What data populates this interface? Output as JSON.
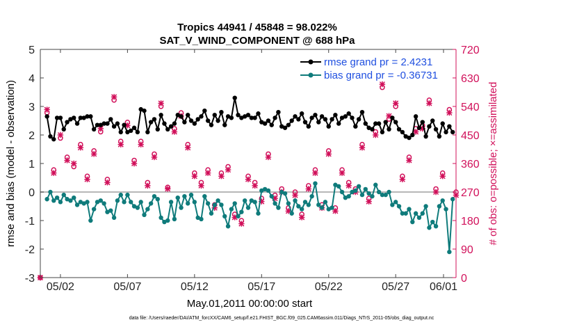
{
  "chart_data": {
    "type": "line",
    "title": "Tropics 44941 / 45848 = 98.022%",
    "subtitle": "SAT_V_WIND_COMPONENT @ 688 hPa",
    "xlabel": "May.01,2011 00:00:00 start",
    "ylabel_left": "rmse and bias (model - observation)",
    "ylabel_right": "# of obs: o=possible; ×=assimilated",
    "footnote": "data file: /Users/raeder/DAI/ATM_forcXX/CAM6_setup/f.e21.FHIST_BGC.f09_025.CAM6assim.011/Diags_NTrS_2011-05/obs_diag_output.nc",
    "xlim": [
      0.5,
      31.5
    ],
    "ylim_left": [
      -3,
      5
    ],
    "ylim_right": [
      0,
      720
    ],
    "x_ticks": [
      {
        "x": 2,
        "label": "05/02"
      },
      {
        "x": 7,
        "label": "05/07"
      },
      {
        "x": 12,
        "label": "05/12"
      },
      {
        "x": 17,
        "label": "05/17"
      },
      {
        "x": 22,
        "label": "05/22"
      },
      {
        "x": 27,
        "label": "05/27"
      },
      {
        "x": 32,
        "label": "06/01"
      }
    ],
    "y_ticks_left": [
      -3,
      -2,
      -1,
      0,
      1,
      2,
      3,
      4,
      5
    ],
    "y_ticks_right": [
      0,
      90,
      180,
      270,
      360,
      450,
      540,
      630,
      720
    ],
    "zero_line": 0,
    "colors": {
      "rmse": "#000000",
      "bias": "#0f7b7b",
      "obs": "#d1105a",
      "zero": "#b8b8b8",
      "legend_text": "#1f4fe0"
    },
    "series": [
      {
        "name": "rmse grand pr = 2.4231",
        "axis": "left",
        "x": [
          1.0,
          1.25,
          1.5,
          1.75,
          2.0,
          2.25,
          2.5,
          2.75,
          3.0,
          3.25,
          3.5,
          3.75,
          4.0,
          4.25,
          4.5,
          4.75,
          5.0,
          5.25,
          5.5,
          5.75,
          6.0,
          6.25,
          6.5,
          6.75,
          7.0,
          7.25,
          7.5,
          7.75,
          8.0,
          8.25,
          8.5,
          8.75,
          9.0,
          9.25,
          9.5,
          9.75,
          10.0,
          10.25,
          10.5,
          10.75,
          11.0,
          11.25,
          11.5,
          11.75,
          12.0,
          12.25,
          12.5,
          12.75,
          13.0,
          13.25,
          13.5,
          13.75,
          14.0,
          14.25,
          14.5,
          14.75,
          15.0,
          15.25,
          15.5,
          15.75,
          16.0,
          16.25,
          16.5,
          16.75,
          17.0,
          17.25,
          17.5,
          17.75,
          18.0,
          18.25,
          18.5,
          18.75,
          19.0,
          19.25,
          19.5,
          19.75,
          20.0,
          20.25,
          20.5,
          20.75,
          21.0,
          21.25,
          21.5,
          21.75,
          22.0,
          22.25,
          22.5,
          22.75,
          23.0,
          23.25,
          23.5,
          23.75,
          24.0,
          24.25,
          24.5,
          24.75,
          25.0,
          25.25,
          25.5,
          25.75,
          26.0,
          26.25,
          26.5,
          26.75,
          27.0,
          27.25,
          27.5,
          27.75,
          28.0,
          28.25,
          28.5,
          28.75,
          29.0,
          29.25,
          29.5,
          29.75,
          30.0,
          30.25,
          30.5,
          30.75,
          31.0,
          31.25
        ],
        "values": [
          2.65,
          1.95,
          1.85,
          2.6,
          2.6,
          2.2,
          2.45,
          2.55,
          2.6,
          2.4,
          2.6,
          2.6,
          2.65,
          2.65,
          2.2,
          2.35,
          2.35,
          2.4,
          2.4,
          2.55,
          2.3,
          2.4,
          2.1,
          2.35,
          2.1,
          2.15,
          2.25,
          2.1,
          2.9,
          2.85,
          2.1,
          2.45,
          2.55,
          2.2,
          2.7,
          2.4,
          2.2,
          2.3,
          2.4,
          2.7,
          2.65,
          2.45,
          2.7,
          2.5,
          2.4,
          2.55,
          2.65,
          2.85,
          2.5,
          2.35,
          2.7,
          2.5,
          2.8,
          2.35,
          2.65,
          2.6,
          3.3,
          2.7,
          2.6,
          2.65,
          2.7,
          2.6,
          2.6,
          2.75,
          2.45,
          2.4,
          2.5,
          2.35,
          2.6,
          2.8,
          2.3,
          2.25,
          2.35,
          2.5,
          2.65,
          2.55,
          2.75,
          2.45,
          2.3,
          2.6,
          2.7,
          2.45,
          2.65,
          2.55,
          2.3,
          2.55,
          2.7,
          2.4,
          2.6,
          2.65,
          2.75,
          2.6,
          2.3,
          2.55,
          2.8,
          2.4,
          2.25,
          2.2,
          2.4,
          2.4,
          2.1,
          2.45,
          2.2,
          2.6,
          2.45,
          2.2,
          2.1,
          1.95,
          1.9,
          2.0,
          2.65,
          2.25,
          2.45,
          1.95,
          2.3,
          2.5,
          2.2,
          1.95,
          2.4,
          2.1,
          2.3,
          2.1
        ]
      },
      {
        "name": "bias grand pr = -0.36731",
        "axis": "left",
        "x": [
          1.0,
          1.25,
          1.5,
          1.75,
          2.0,
          2.25,
          2.5,
          2.75,
          3.0,
          3.25,
          3.5,
          3.75,
          4.0,
          4.25,
          4.5,
          4.75,
          5.0,
          5.25,
          5.5,
          5.75,
          6.0,
          6.25,
          6.5,
          6.75,
          7.0,
          7.25,
          7.5,
          7.75,
          8.0,
          8.25,
          8.5,
          8.75,
          9.0,
          9.25,
          9.5,
          9.75,
          10.0,
          10.25,
          10.5,
          10.75,
          11.0,
          11.25,
          11.5,
          11.75,
          12.0,
          12.25,
          12.5,
          12.75,
          13.0,
          13.25,
          13.5,
          13.75,
          14.0,
          14.25,
          14.5,
          14.75,
          15.0,
          15.25,
          15.5,
          15.75,
          16.0,
          16.25,
          16.5,
          16.75,
          17.0,
          17.25,
          17.5,
          17.75,
          18.0,
          18.25,
          18.5,
          18.75,
          19.0,
          19.25,
          19.5,
          19.75,
          20.0,
          20.25,
          20.5,
          20.75,
          21.0,
          21.25,
          21.5,
          21.75,
          22.0,
          22.25,
          22.5,
          22.75,
          23.0,
          23.25,
          23.5,
          23.75,
          24.0,
          24.25,
          24.5,
          24.75,
          25.0,
          25.25,
          25.5,
          25.75,
          26.0,
          26.25,
          26.5,
          26.75,
          27.0,
          27.25,
          27.5,
          27.75,
          28.0,
          28.25,
          28.5,
          28.75,
          29.0,
          29.25,
          29.5,
          29.75,
          30.0,
          30.25,
          30.5,
          30.75,
          31.0,
          31.25
        ],
        "values": [
          -0.25,
          0.0,
          -0.3,
          -0.2,
          -0.35,
          -0.1,
          -0.25,
          -0.3,
          -0.2,
          -0.45,
          -0.35,
          -0.4,
          -0.35,
          -1.0,
          -0.6,
          -0.35,
          -0.3,
          -0.4,
          -0.7,
          -0.65,
          -0.9,
          -0.3,
          -0.1,
          -0.35,
          -0.1,
          -0.35,
          -0.5,
          -0.55,
          -0.35,
          -0.8,
          -0.6,
          -0.4,
          -0.15,
          -0.25,
          -0.9,
          -1.05,
          -1.0,
          -0.35,
          -0.95,
          -0.2,
          -0.55,
          -0.15,
          -0.4,
          -0.1,
          -0.35,
          -0.9,
          -0.95,
          -0.15,
          -0.4,
          -0.75,
          -0.45,
          -0.3,
          -0.45,
          -0.85,
          -1.2,
          -0.6,
          -0.4,
          -0.85,
          -0.7,
          -0.3,
          -0.55,
          -0.3,
          -0.35,
          -0.75,
          0.05,
          0.1,
          0.05,
          -0.15,
          -0.4,
          -0.55,
          0.0,
          -0.05,
          -0.4,
          -0.75,
          -0.3,
          -0.5,
          -0.6,
          -0.35,
          -0.45,
          -0.15,
          0.3,
          -0.45,
          -0.55,
          -0.35,
          -0.6,
          -0.55,
          0.25,
          0.2,
          0.0,
          -0.2,
          -0.15,
          0.0,
          0.05,
          0.2,
          -0.1,
          0.1,
          -0.05,
          -0.15,
          0.25,
          0.0,
          -0.1,
          -0.1,
          0.0,
          -0.45,
          -0.35,
          -0.5,
          -0.75,
          -0.75,
          -0.6,
          -1.05,
          -0.75,
          -0.9,
          -0.75,
          -0.5,
          -1.25,
          -1.05,
          -1.2,
          -0.5,
          -0.3,
          -0.6,
          -2.1,
          -0.25
        ]
      }
    ],
    "obs_possible": {
      "axis": "right",
      "marker": "o",
      "x": [
        0.5,
        1.0,
        1.5,
        2.0,
        2.5,
        3.0,
        3.5,
        4.0,
        4.5,
        5.0,
        5.5,
        6.0,
        6.5,
        7.0,
        7.5,
        8.0,
        8.5,
        9.0,
        9.5,
        10.0,
        10.5,
        11.0,
        11.5,
        12.0,
        12.5,
        13.0,
        13.5,
        14.0,
        14.5,
        15.0,
        15.5,
        16.0,
        16.5,
        17.0,
        17.5,
        18.0,
        18.5,
        19.0,
        19.5,
        20.0,
        20.5,
        21.0,
        21.5,
        22.0,
        22.5,
        23.0,
        23.5,
        24.0,
        24.5,
        25.0,
        25.5,
        26.0,
        26.5,
        27.0,
        27.5,
        28.0,
        28.5,
        29.0,
        29.5,
        30.0,
        30.5,
        31.0,
        31.5
      ],
      "values": [
        0,
        520,
        340,
        440,
        380,
        350,
        420,
        320,
        400,
        460,
        310,
        560,
        430,
        490,
        370,
        430,
        300,
        390,
        540,
        285,
        470,
        520,
        420,
        330,
        300,
        340,
        230,
        330,
        350,
        200,
        180,
        320,
        300,
        250,
        390,
        260,
        280,
        220,
        270,
        200,
        290,
        340,
        230,
        400,
        220,
        340,
        300,
        280,
        420,
        250,
        460,
        600,
        500,
        540,
        320,
        380,
        470,
        480,
        560,
        280,
        330,
        530,
        270
      ]
    },
    "obs_assimilated": {
      "axis": "right",
      "marker": "x",
      "x": [
        0.5,
        1.0,
        1.5,
        2.0,
        2.5,
        3.0,
        3.5,
        4.0,
        4.5,
        5.0,
        5.5,
        6.0,
        6.5,
        7.0,
        7.5,
        8.0,
        8.5,
        9.0,
        9.5,
        10.0,
        10.5,
        11.0,
        11.5,
        12.0,
        12.5,
        13.0,
        13.5,
        14.0,
        14.5,
        15.0,
        15.5,
        16.0,
        16.5,
        17.0,
        17.5,
        18.0,
        18.5,
        19.0,
        19.5,
        20.0,
        20.5,
        21.0,
        21.5,
        22.0,
        22.5,
        23.0,
        23.5,
        24.0,
        24.5,
        25.0,
        25.5,
        26.0,
        26.5,
        27.0,
        27.5,
        28.0,
        28.5,
        29.0,
        29.5,
        30.0,
        30.5,
        31.0,
        31.5
      ],
      "values": [
        0,
        530,
        330,
        450,
        370,
        360,
        410,
        310,
        390,
        470,
        300,
        570,
        420,
        480,
        360,
        420,
        290,
        380,
        550,
        280,
        460,
        510,
        410,
        320,
        290,
        330,
        220,
        320,
        340,
        190,
        170,
        310,
        290,
        240,
        380,
        250,
        270,
        210,
        260,
        190,
        280,
        330,
        220,
        390,
        210,
        330,
        290,
        270,
        410,
        240,
        450,
        610,
        510,
        550,
        310,
        370,
        460,
        470,
        550,
        270,
        320,
        520,
        260
      ]
    }
  }
}
